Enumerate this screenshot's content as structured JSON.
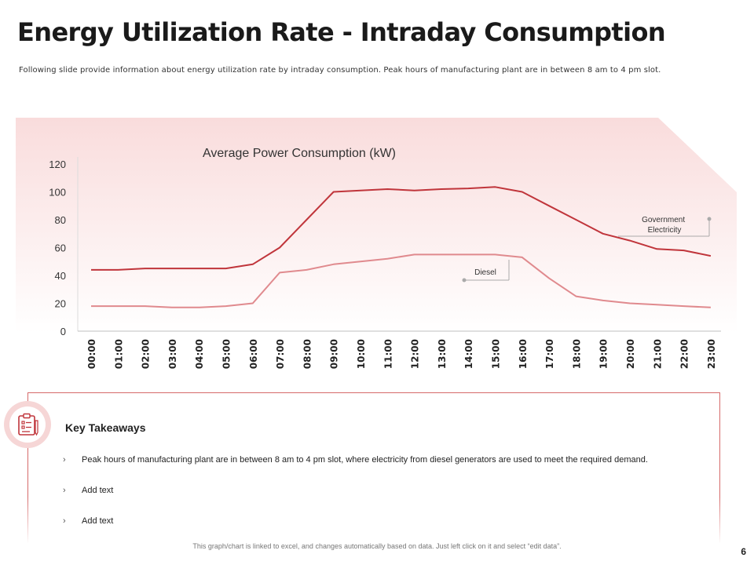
{
  "header": {
    "title": "Energy Utilization Rate - Intraday Consumption",
    "subtitle": "Following slide provide information about energy utilization rate by intraday consumption. Peak hours of manufacturing plant are in between 8 am to 4 pm slot."
  },
  "chart_data": {
    "type": "line",
    "title": "Average Power Consumption (kW)",
    "categories": [
      "00:00",
      "01:00",
      "02:00",
      "03:00",
      "04:00",
      "05:00",
      "06:00",
      "07:00",
      "08:00",
      "09:00",
      "10:00",
      "11:00",
      "12:00",
      "13:00",
      "14:00",
      "15:00",
      "16:00",
      "17:00",
      "18:00",
      "19:00",
      "20:00",
      "21:00",
      "22:00",
      "23:00"
    ],
    "series": [
      {
        "name": "Government Electricity",
        "color": "#c0353b",
        "values": [
          44,
          44,
          45,
          45,
          45,
          45,
          48,
          60,
          80,
          100,
          101,
          102,
          101,
          102,
          102.5,
          103.5,
          100,
          90,
          80,
          70,
          65,
          59,
          58,
          54
        ]
      },
      {
        "name": "Diesel",
        "color": "#e08a8e",
        "values": [
          18,
          18,
          18,
          17,
          17,
          18,
          20,
          42,
          44,
          48,
          50,
          52,
          55,
          55,
          55,
          55,
          53,
          38,
          25,
          22,
          20,
          19,
          18,
          17
        ]
      }
    ],
    "yticks": [
      0,
      20,
      40,
      60,
      80,
      100,
      120
    ],
    "ylim": [
      0,
      120
    ],
    "xlabel": "",
    "ylabel": "",
    "grid": false
  },
  "takeaways": {
    "heading": "Key Takeaways",
    "chevron": "›",
    "items": [
      "Peak hours of manufacturing  plant are in between 8 am to 4 pm slot, where electricity from diesel generators are used to meet the required demand.",
      "Add text",
      "Add text"
    ]
  },
  "footer": {
    "note": "This graph/chart is linked to excel, and changes automatically based on data. Just left click on it and select “edit data”.",
    "page_number": "6"
  },
  "icons": {
    "takeaways_icon": "clipboard-checklist-icon"
  }
}
